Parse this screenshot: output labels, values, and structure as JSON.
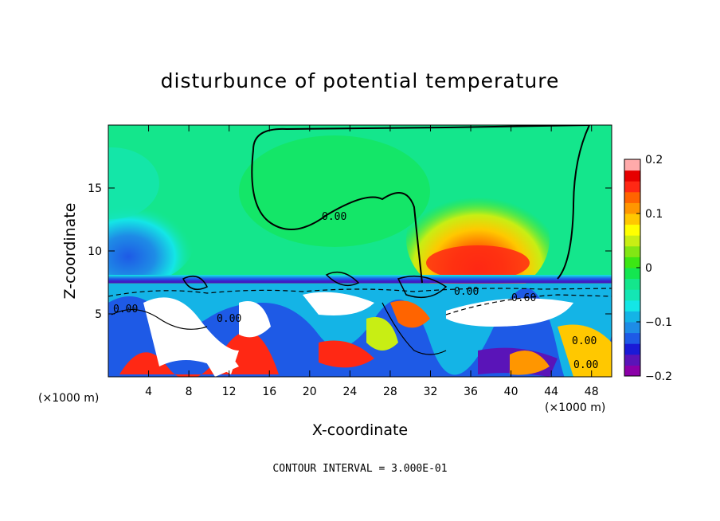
{
  "chart_data": {
    "type": "heatmap",
    "title": "disturbunce of potential temperature",
    "xlabel": "X-coordinate",
    "ylabel": "Z-coordinate",
    "x_unit": "(×1000 m)",
    "x_unit_right": "(×1000 m)",
    "xticks": [
      4,
      8,
      12,
      16,
      20,
      24,
      28,
      32,
      36,
      40,
      44,
      48
    ],
    "yticks": [
      5,
      10,
      15
    ],
    "xlim": [
      0,
      50
    ],
    "ylim": [
      0,
      20
    ],
    "colorbar": {
      "ticks": [
        "0.2",
        "0.1",
        "0",
        "−0.1",
        "−0.2"
      ],
      "values": [
        0.2,
        0.1,
        0,
        -0.1,
        -0.2
      ],
      "range": [
        -0.2,
        0.2
      ]
    },
    "colors": [
      "#8b00a8",
      "#5a14b8",
      "#1a1ad6",
      "#1e5ae6",
      "#1e8ce6",
      "#14b4e6",
      "#14e6e6",
      "#14e6b4",
      "#14e68c",
      "#14e650",
      "#3ce614",
      "#82e614",
      "#c8ee14",
      "#ffff00",
      "#ffc800",
      "#ff9600",
      "#ff6400",
      "#ff2814",
      "#e60000",
      "#ffaaaa"
    ],
    "contour_labels": [
      "0.00",
      "0.00",
      "0.00",
      "0.60",
      "0.00",
      "0.00",
      "0.00"
    ],
    "contour_interval_text": "CONTOUR INTERVAL = 3.000E-01"
  }
}
